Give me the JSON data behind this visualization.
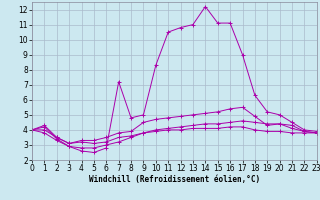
{
  "xlabel": "Windchill (Refroidissement éolien,°C)",
  "background_color": "#cce8f0",
  "grid_color": "#aabbcc",
  "line_color": "#aa00aa",
  "xlim": [
    0,
    23
  ],
  "ylim": [
    2,
    12.5
  ],
  "xticks": [
    0,
    1,
    2,
    3,
    4,
    5,
    6,
    7,
    8,
    9,
    10,
    11,
    12,
    13,
    14,
    15,
    16,
    17,
    18,
    19,
    20,
    21,
    22,
    23
  ],
  "yticks": [
    2,
    3,
    4,
    5,
    6,
    7,
    8,
    9,
    10,
    11,
    12
  ],
  "series": [
    [
      4.0,
      4.2,
      3.4,
      2.9,
      2.6,
      2.5,
      2.8,
      7.2,
      4.8,
      5.0,
      8.3,
      10.5,
      10.8,
      11.0,
      12.2,
      11.1,
      11.1,
      9.0,
      6.3,
      5.2,
      5.0,
      4.5,
      4.0,
      3.9
    ],
    [
      4.0,
      4.3,
      3.5,
      3.1,
      3.3,
      3.3,
      3.5,
      3.8,
      3.9,
      4.5,
      4.7,
      4.8,
      4.9,
      5.0,
      5.1,
      5.2,
      5.4,
      5.5,
      4.9,
      4.3,
      4.4,
      4.1,
      3.9,
      3.8
    ],
    [
      4.0,
      4.0,
      3.5,
      3.1,
      3.2,
      3.1,
      3.2,
      3.5,
      3.6,
      3.8,
      3.9,
      4.0,
      4.0,
      4.1,
      4.1,
      4.1,
      4.2,
      4.2,
      4.0,
      3.9,
      3.9,
      3.8,
      3.8,
      3.8
    ],
    [
      4.0,
      3.8,
      3.3,
      2.9,
      2.8,
      2.8,
      3.0,
      3.2,
      3.5,
      3.8,
      4.0,
      4.1,
      4.2,
      4.3,
      4.4,
      4.4,
      4.5,
      4.6,
      4.5,
      4.4,
      4.4,
      4.3,
      3.9,
      3.8
    ]
  ],
  "tick_fontsize": 5.5,
  "xlabel_fontsize": 5.5,
  "linewidth": 0.7,
  "markersize": 2.5,
  "marker": "+"
}
